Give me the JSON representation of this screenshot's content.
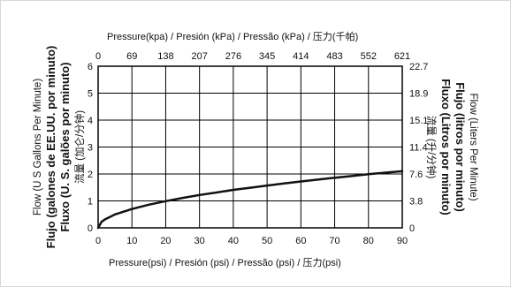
{
  "chart_data": {
    "type": "line",
    "x_bottom": {
      "label": "Pressure(psi) / Presión (psi) / Pressão (psi) / 压力(psi)",
      "ticks": [
        0,
        10,
        20,
        30,
        40,
        50,
        60,
        70,
        80,
        90
      ],
      "range": [
        0,
        90
      ]
    },
    "x_top": {
      "label": "Pressure(kpa) / Presión (kPa) / Pressão (kPa) / 压力(千帕)",
      "ticks": [
        0,
        69,
        138,
        207,
        276,
        345,
        414,
        483,
        552,
        621
      ]
    },
    "y_left": {
      "labels": [
        "Flow (U S  Gallons Per Minute)",
        "Flujo (galones de EE.UU. por minuto)",
        "Fluxo (U. S. galões por minuto)",
        "流量 (加仑/分钟)"
      ],
      "ticks": [
        0,
        1,
        2,
        3,
        4,
        5,
        6
      ],
      "range": [
        0,
        6
      ]
    },
    "y_right": {
      "labels": [
        "Flow (Liters Per Minute)",
        "Flujo (litros por minuto)",
        "Fluxo (Litros por minuto)",
        "流量 (升/分钟)"
      ],
      "ticks": [
        "0",
        "3.8",
        "7.6",
        "11.4",
        "15.1",
        "18.9",
        "22.7"
      ]
    },
    "grid": true,
    "series": [
      {
        "x": [
          0,
          1,
          2,
          5,
          10,
          15,
          20,
          25,
          30,
          35,
          40,
          45,
          50,
          55,
          60,
          65,
          70,
          75,
          80,
          85,
          90
        ],
        "y": [
          0,
          0.22,
          0.31,
          0.5,
          0.7,
          0.86,
          0.99,
          1.11,
          1.22,
          1.31,
          1.41,
          1.49,
          1.57,
          1.65,
          1.72,
          1.79,
          1.86,
          1.92,
          1.99,
          2.05,
          2.1
        ]
      }
    ]
  }
}
